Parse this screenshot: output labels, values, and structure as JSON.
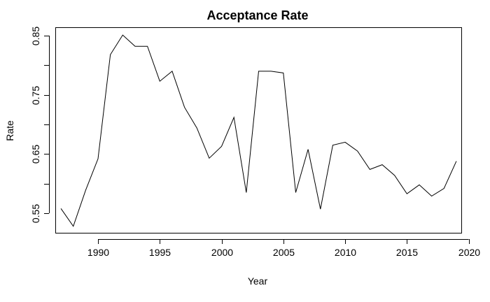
{
  "chart_data": {
    "type": "line",
    "title": "Acceptance Rate",
    "xlabel": "Year",
    "ylabel": "Rate",
    "xlim": [
      1986.6,
      2019.4
    ],
    "ylim": [
      0.517,
      0.863
    ],
    "x_ticks": [
      1990,
      1995,
      2000,
      2005,
      2010,
      2015,
      2020
    ],
    "x_tick_labels": [
      "1990",
      "1995",
      "2000",
      "2005",
      "2010",
      "2015",
      "2020"
    ],
    "y_ticks": [
      0.55,
      0.65,
      0.75,
      0.85
    ],
    "y_tick_labels": [
      "0.55",
      "0.65",
      "0.75",
      "0.85"
    ],
    "y_minor_ticks": [
      0.6,
      0.7,
      0.8
    ],
    "grid": false,
    "line_color": "#000000",
    "series": [
      {
        "x": [
          1987,
          1988,
          1989,
          1990,
          1991,
          1992,
          1993,
          1994,
          1995,
          1996,
          1997,
          1998,
          1999,
          2000,
          2001,
          2002,
          2003,
          2004,
          2005,
          2006,
          2007,
          2008,
          2009,
          2010,
          2011,
          2012,
          2013,
          2014,
          2015,
          2016,
          2017,
          2018,
          2019
        ],
        "values": [
          0.558,
          0.528,
          0.589,
          0.642,
          0.818,
          0.851,
          0.832,
          0.832,
          0.773,
          0.79,
          0.729,
          0.694,
          0.643,
          0.663,
          0.712,
          0.585,
          0.79,
          0.79,
          0.787,
          0.585,
          0.658,
          0.557,
          0.665,
          0.67,
          0.655,
          0.624,
          0.632,
          0.614,
          0.583,
          0.598,
          0.579,
          0.592,
          0.638
        ]
      }
    ]
  }
}
